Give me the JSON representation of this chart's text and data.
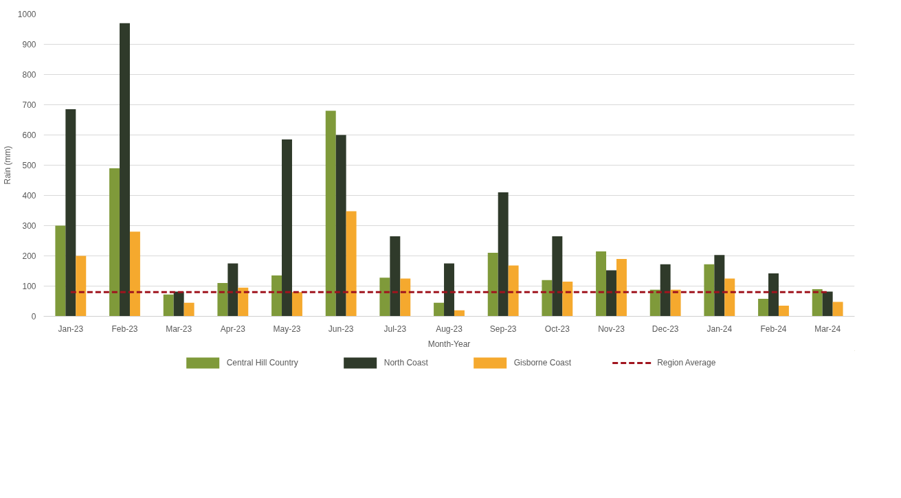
{
  "chart_data": {
    "type": "bar",
    "xlabel": "Month-Year",
    "ylabel": "Rain (mm)",
    "categories": [
      "Jan-23",
      "Feb-23",
      "Mar-23",
      "Apr-23",
      "May-23",
      "Jun-23",
      "Jul-23",
      "Aug-23",
      "Sep-23",
      "Oct-23",
      "Nov-23",
      "Dec-23",
      "Jan-24",
      "Feb-24",
      "Mar-24"
    ],
    "series": [
      {
        "name": "Central Hill Country",
        "color": "#7f9a3a",
        "values": [
          300,
          490,
          72,
          110,
          135,
          680,
          128,
          45,
          210,
          120,
          215,
          88,
          172,
          58,
          90
        ]
      },
      {
        "name": "North Coast",
        "color": "#2f3a2a",
        "values": [
          685,
          970,
          82,
          175,
          585,
          600,
          265,
          175,
          410,
          265,
          152,
          172,
          203,
          142,
          82
        ]
      },
      {
        "name": "Gisborne Coast",
        "color": "#f5a92e",
        "values": [
          200,
          280,
          45,
          95,
          80,
          348,
          125,
          20,
          168,
          115,
          190,
          88,
          125,
          35,
          48
        ]
      },
      {
        "name": "Region Average",
        "color": "#a0141e",
        "type": "line",
        "line_style": "dashed",
        "values": [
          80,
          80,
          80,
          80,
          80,
          80,
          80,
          80,
          80,
          80,
          80,
          80,
          80,
          80,
          80
        ]
      }
    ],
    "ylim": [
      0,
      1000
    ],
    "yticks": [
      0,
      100,
      200,
      300,
      400,
      500,
      600,
      700,
      800,
      900,
      1000
    ],
    "grid": "y",
    "legend": "bottom"
  }
}
